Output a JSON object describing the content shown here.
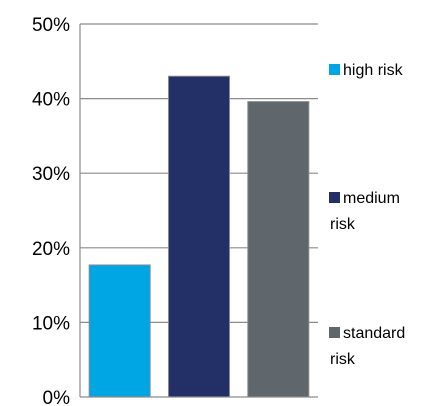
{
  "chart_data": {
    "type": "bar",
    "categories": [
      "high risk",
      "medium risk",
      "standard risk"
    ],
    "values": [
      17.7,
      43.0,
      39.6
    ],
    "title": "",
    "xlabel": "",
    "ylabel": "",
    "ylim": [
      0,
      50
    ],
    "yticks": [
      "0%",
      "10%",
      "20%",
      "30%",
      "40%",
      "50%"
    ],
    "grid": true,
    "legend_position": "right",
    "legend": [
      {
        "lines": [
          "high risk"
        ],
        "color": "#00A6E3"
      },
      {
        "lines": [
          "medium",
          "risk"
        ],
        "color": "#233067"
      },
      {
        "lines": [
          "standard",
          "risk"
        ],
        "color": "#5F676D"
      }
    ],
    "colors": [
      "#00A6E3",
      "#233067",
      "#5F676D"
    ]
  }
}
